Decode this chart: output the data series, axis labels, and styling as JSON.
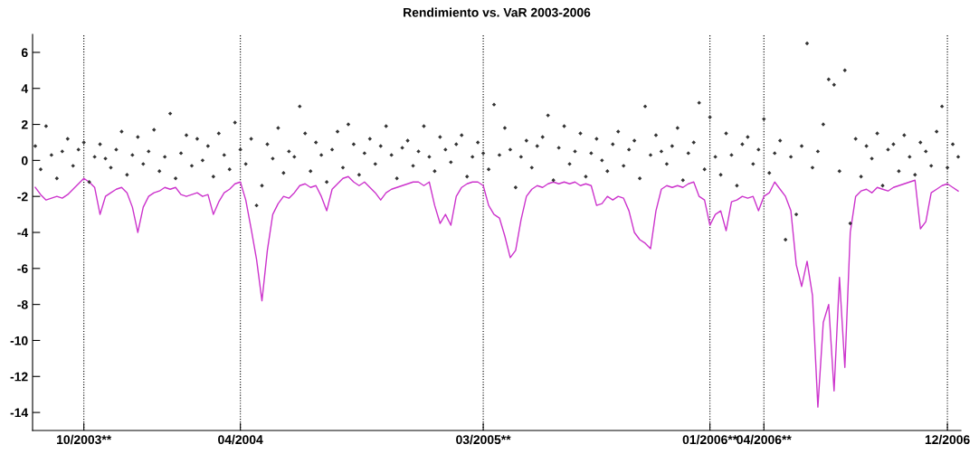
{
  "chart_data": {
    "type": "scatter",
    "title": "Rendimiento vs. VaR 2003-2006",
    "ylim": [
      -15,
      7
    ],
    "categories": [
      null,
      null,
      null,
      null,
      null,
      null,
      null,
      null,
      null,
      "10/2003**",
      null,
      null,
      null,
      null,
      null,
      null,
      null,
      null,
      null,
      null,
      null,
      null,
      null,
      null,
      null,
      null,
      null,
      null,
      null,
      null,
      null,
      null,
      null,
      null,
      null,
      null,
      null,
      null,
      "04/2004",
      null,
      null,
      null,
      null,
      null,
      null,
      null,
      null,
      null,
      null,
      null,
      null,
      null,
      null,
      null,
      null,
      null,
      null,
      null,
      null,
      null,
      null,
      null,
      null,
      null,
      null,
      null,
      null,
      null,
      null,
      null,
      null,
      null,
      null,
      null,
      null,
      null,
      null,
      null,
      null,
      null,
      null,
      null,
      null,
      "03/2005**",
      null,
      null,
      null,
      null,
      null,
      null,
      null,
      null,
      null,
      null,
      null,
      null,
      null,
      null,
      null,
      null,
      null,
      null,
      null,
      null,
      null,
      null,
      null,
      null,
      null,
      null,
      null,
      null,
      null,
      null,
      null,
      null,
      null,
      null,
      null,
      null,
      null,
      null,
      null,
      null,
      null,
      "01/2006**",
      null,
      null,
      null,
      null,
      null,
      null,
      null,
      null,
      null,
      "04/2006**",
      null,
      null,
      null,
      null,
      null,
      null,
      null,
      null,
      null,
      null,
      null,
      null,
      null,
      null,
      null,
      null,
      null,
      null,
      null,
      null,
      null,
      null,
      null,
      null,
      null,
      null,
      null,
      null,
      null,
      null,
      null,
      null,
      null,
      "12/2006",
      null,
      null
    ],
    "yticks": [
      -14,
      -12,
      -10,
      -8,
      -6,
      -4,
      -2,
      0,
      2,
      4,
      6
    ],
    "grid": "x",
    "series": [
      {
        "marker": "diamond",
        "color": "#333333",
        "values": [
          0.8,
          -0.5,
          1.9,
          0.3,
          -1.0,
          0.5,
          1.2,
          -0.3,
          0.6,
          1.0,
          -1.2,
          0.2,
          0.9,
          0.1,
          -0.4,
          0.6,
          1.6,
          -0.8,
          0.3,
          1.3,
          -0.2,
          0.5,
          1.7,
          -0.6,
          0.2,
          2.6,
          -1.0,
          0.4,
          1.4,
          -0.3,
          1.2,
          0.0,
          0.8,
          -0.9,
          1.5,
          0.3,
          -0.5,
          2.1,
          0.6,
          -0.2,
          1.2,
          -2.5,
          -1.4,
          0.9,
          0.1,
          1.8,
          -0.7,
          0.5,
          0.2,
          3.0,
          1.5,
          -0.6,
          1.0,
          0.3,
          -1.2,
          0.6,
          1.6,
          -0.4,
          2.0,
          0.9,
          -0.8,
          0.4,
          1.2,
          -0.2,
          0.8,
          1.9,
          0.3,
          -1.0,
          0.7,
          1.1,
          -0.3,
          0.5,
          1.9,
          0.2,
          -0.6,
          1.3,
          0.6,
          -0.1,
          0.9,
          1.4,
          -0.9,
          0.2,
          1.0,
          0.4,
          -0.5,
          3.1,
          0.3,
          1.8,
          0.6,
          -1.5,
          0.2,
          1.1,
          -0.4,
          0.8,
          1.3,
          2.5,
          -1.1,
          0.7,
          1.9,
          -0.2,
          0.5,
          1.5,
          -0.9,
          0.4,
          1.2,
          0.0,
          -0.6,
          0.9,
          1.6,
          -0.3,
          0.6,
          1.1,
          -1.0,
          3.0,
          0.3,
          1.4,
          0.5,
          -0.2,
          0.8,
          1.8,
          -1.1,
          0.4,
          1.0,
          3.2,
          -0.5,
          2.4,
          0.2,
          -0.8,
          1.5,
          0.3,
          -1.4,
          0.9,
          1.3,
          -0.2,
          0.6,
          2.3,
          -0.7,
          0.4,
          1.1,
          -4.4,
          0.2,
          -3.0,
          0.8,
          6.5,
          -0.4,
          0.5,
          2.0,
          4.5,
          4.2,
          -0.6,
          5.0,
          -3.5,
          1.2,
          -0.9,
          0.8,
          0.1,
          1.5,
          -1.4,
          0.6,
          0.9,
          -0.6,
          1.4,
          0.2,
          -0.8,
          1.0,
          0.5,
          -0.3,
          1.6,
          3.0,
          -0.4,
          0.9,
          0.2
        ]
      },
      {
        "type": "line",
        "color": "#cc33cc",
        "values": [
          -1.5,
          -1.9,
          -2.2,
          -2.1,
          -2.0,
          -2.1,
          -1.9,
          -1.6,
          -1.3,
          -1.0,
          -1.2,
          -1.5,
          -3.0,
          -2.0,
          -1.8,
          -1.6,
          -1.5,
          -1.8,
          -2.6,
          -4.0,
          -2.6,
          -2.0,
          -1.8,
          -1.7,
          -1.5,
          -1.6,
          -1.5,
          -1.9,
          -2.0,
          -1.9,
          -1.8,
          -2.0,
          -1.9,
          -3.0,
          -2.3,
          -1.8,
          -1.6,
          -1.3,
          -1.2,
          -2.2,
          -3.8,
          -5.5,
          -7.8,
          -5.0,
          -3.0,
          -2.4,
          -2.0,
          -2.1,
          -1.8,
          -1.4,
          -1.3,
          -1.5,
          -1.4,
          -2.0,
          -2.8,
          -1.6,
          -1.3,
          -1.0,
          -0.9,
          -1.2,
          -1.4,
          -1.2,
          -1.5,
          -1.8,
          -2.2,
          -1.8,
          -1.6,
          -1.5,
          -1.4,
          -1.3,
          -1.2,
          -1.2,
          -1.4,
          -1.2,
          -2.5,
          -3.5,
          -3.0,
          -3.6,
          -2.0,
          -1.5,
          -1.3,
          -1.2,
          -1.2,
          -1.4,
          -2.5,
          -3.0,
          -3.2,
          -4.2,
          -5.4,
          -5.0,
          -3.3,
          -2.0,
          -1.6,
          -1.4,
          -1.5,
          -1.3,
          -1.2,
          -1.3,
          -1.2,
          -1.3,
          -1.2,
          -1.4,
          -1.3,
          -1.4,
          -2.5,
          -2.4,
          -2.0,
          -2.2,
          -2.0,
          -2.1,
          -2.8,
          -4.0,
          -4.4,
          -4.6,
          -4.9,
          -2.8,
          -1.6,
          -1.4,
          -1.5,
          -1.4,
          -1.5,
          -1.3,
          -1.2,
          -2.0,
          -2.2,
          -3.6,
          -3.0,
          -2.8,
          -3.9,
          -2.3,
          -2.2,
          -2.0,
          -2.1,
          -2.0,
          -2.8,
          -2.0,
          -1.8,
          -1.2,
          -1.6,
          -2.0,
          -2.8,
          -5.8,
          -7.0,
          -5.6,
          -7.5,
          -13.7,
          -9.0,
          -8.0,
          -12.8,
          -6.5,
          -11.5,
          -4.0,
          -2.0,
          -1.7,
          -1.6,
          -1.8,
          -1.5,
          -1.6,
          -1.7,
          -1.5,
          -1.4,
          -1.3,
          -1.2,
          -1.1,
          -3.8,
          -3.4,
          -1.8,
          -1.6,
          -1.4,
          -1.3,
          -1.5,
          -1.7
        ]
      }
    ]
  }
}
